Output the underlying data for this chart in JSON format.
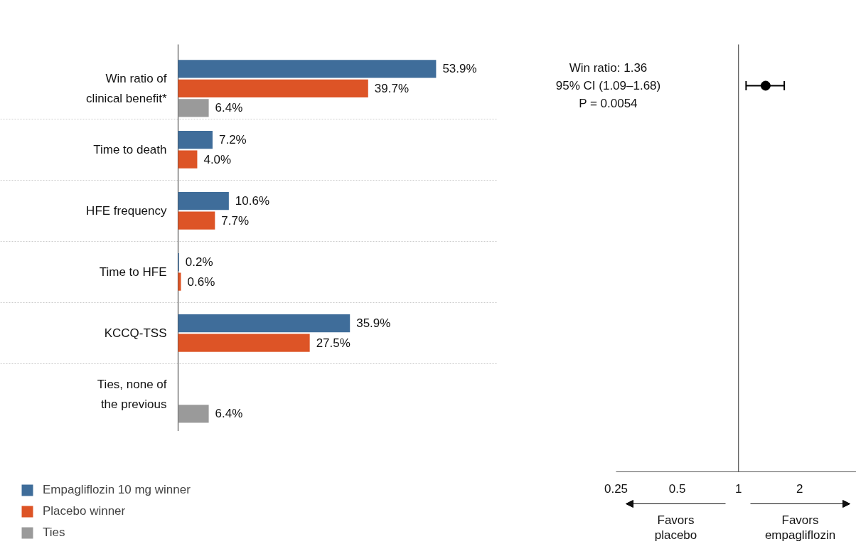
{
  "chart_data": [
    {
      "type": "bar",
      "orientation": "horizontal",
      "categories": [
        "Win ratio of clinical benefit*",
        "Time to death",
        "HFE frequency",
        "Time to HFE",
        "KCCQ-TSS",
        "Ties, none of the previous"
      ],
      "series": [
        {
          "name": "Empagliflozin 10 mg winner",
          "color": "#3f6d9a",
          "values": [
            53.9,
            7.2,
            10.6,
            0.2,
            35.9,
            null
          ],
          "value_labels": [
            "53.9%",
            "7.2%",
            "10.6%",
            "0.2%",
            "35.9%",
            null
          ]
        },
        {
          "name": "Placebo winner",
          "color": "#dd5426",
          "values": [
            39.7,
            4.0,
            7.7,
            0.6,
            27.5,
            null
          ],
          "value_labels": [
            "39.7%",
            "4.0%",
            "7.7%",
            "0.6%",
            "27.5%",
            null
          ]
        },
        {
          "name": "Ties",
          "color": "#9a9a9a",
          "values": [
            6.4,
            null,
            null,
            null,
            null,
            6.4
          ],
          "value_labels": [
            "6.4%",
            null,
            null,
            null,
            null,
            "6.4%"
          ]
        }
      ],
      "grid": "y",
      "legend": "bottom left"
    },
    {
      "type": "scatter",
      "orientation": "horizontal",
      "categories": [
        null
      ],
      "values": [
        1.36
      ],
      "errors": [
        [
          1.09,
          1.68
        ]
      ],
      "color": "#000000",
      "marker": "circle",
      "log": "x",
      "xlim": [
        0.25,
        3.8
      ],
      "xticks": [
        0.25,
        0.5,
        1,
        2
      ],
      "tick_labels": "x",
      "ref_lines": [
        {
          "axis": "x",
          "value": 1
        }
      ],
      "annotations": [
        "Win ratio: 1.36",
        "95% CI (1.09–1.68)",
        "P = 0.0054",
        "Favors placebo",
        "Favors empagliflozin"
      ]
    }
  ]
}
